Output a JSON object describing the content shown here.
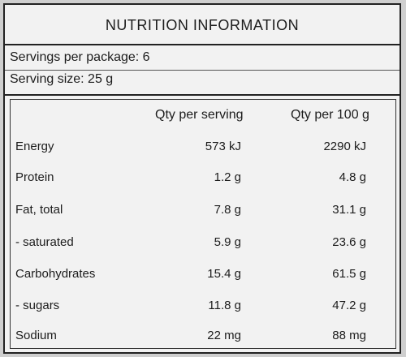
{
  "title": "NUTRITION INFORMATION",
  "servings_per_package": "Servings per package: 6",
  "serving_size": "Serving size: 25 g",
  "columns": {
    "per_serving": "Qty per serving",
    "per_100g": "Qty per 100 g"
  },
  "rows": [
    {
      "name": "Energy",
      "per_serving": "573 kJ",
      "per_100g": "2290 kJ"
    },
    {
      "name": "Protein",
      "per_serving": "1.2 g",
      "per_100g": "4.8 g"
    },
    {
      "name": "Fat, total",
      "per_serving": "7.8 g",
      "per_100g": "31.1 g"
    },
    {
      "name": "- saturated",
      "per_serving": "5.9 g",
      "per_100g": "23.6 g"
    },
    {
      "name": "Carbohydrates",
      "per_serving": "15.4 g",
      "per_100g": "61.5 g"
    },
    {
      "name": "- sugars",
      "per_serving": "11.8 g",
      "per_100g": "47.2 g"
    },
    {
      "name": "Sodium",
      "per_serving": "22 mg",
      "per_100g": "88 mg"
    }
  ]
}
